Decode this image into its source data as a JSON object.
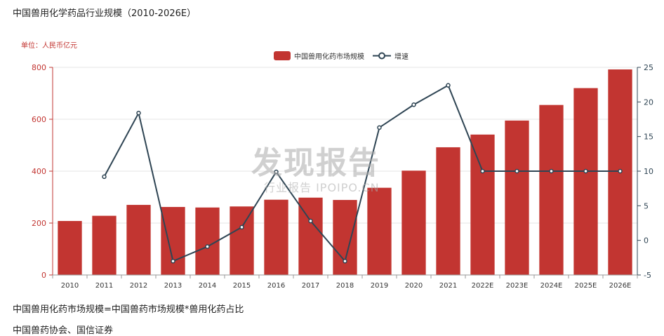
{
  "title": "中国兽用化学药品行业规模（2010-2026E）",
  "unit_label": "单位：人民币亿元",
  "legend": {
    "bar_label": "中国兽用化药市场规模",
    "line_label": "增速"
  },
  "watermark": {
    "main": "发现报告",
    "sub": "行业报告 IPOIPO.CN"
  },
  "footnotes": {
    "formula": "中国兽用化药市场规模=中国兽药市场规模*兽用化药占比",
    "source": "中国兽药协会、国信证券"
  },
  "chart_data": {
    "type": "bar",
    "categories": [
      "2010",
      "2011",
      "2012",
      "2013",
      "2014",
      "2015",
      "2016",
      "2017",
      "2018",
      "2019",
      "2020",
      "2021",
      "2022E",
      "2023E",
      "2024E",
      "2025E",
      "2026E"
    ],
    "series": [
      {
        "name": "中国兽用化药市场规模",
        "type": "bar",
        "axis": "left",
        "values": [
          208,
          228,
          270,
          262,
          260,
          264,
          290,
          298,
          289,
          336,
          402,
          492,
          541,
          595,
          655,
          720,
          792
        ]
      },
      {
        "name": "增速",
        "type": "line",
        "axis": "right",
        "values": [
          null,
          9.2,
          18.4,
          -3.0,
          -0.9,
          1.9,
          9.9,
          2.8,
          -3.0,
          16.3,
          19.6,
          22.4,
          10,
          10,
          10,
          10,
          10
        ]
      }
    ],
    "y_left": {
      "min": 0,
      "max": 800,
      "ticks": [
        "0",
        "200",
        "400",
        "600",
        "800"
      ]
    },
    "y_right": {
      "min": -5,
      "max": 25,
      "ticks": [
        "-5",
        "0",
        "5",
        "10",
        "15",
        "20",
        "25"
      ]
    },
    "grid": true,
    "colors": {
      "bar": "#c23531",
      "line": "#2f4554",
      "left_axis": "#c23531",
      "right_axis": "#2f4554"
    }
  }
}
